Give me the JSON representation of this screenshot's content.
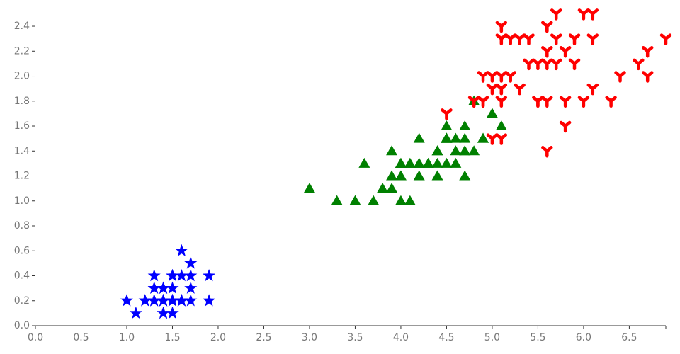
{
  "chart_data": {
    "type": "scatter",
    "xlim": [
      0,
      6.9
    ],
    "ylim": [
      0,
      2.5
    ],
    "xticks": [
      {
        "value": 0,
        "label": "0.0"
      },
      0.5,
      {
        "value": 1,
        "label": "1.0"
      },
      1.5,
      {
        "value": 2,
        "label": "2.0"
      },
      2.5,
      {
        "value": 3,
        "label": "3.0"
      },
      3.5,
      {
        "value": 4,
        "label": "4.0"
      },
      4.5,
      {
        "value": 5,
        "label": "5.0"
      },
      5.5,
      {
        "value": 6,
        "label": "6.0"
      },
      6.5
    ],
    "yticks": [
      {
        "value": 0,
        "label": "0.0"
      },
      0.2,
      0.4,
      0.6,
      0.8,
      {
        "value": 1,
        "label": "1.0"
      },
      1.2,
      1.4,
      1.6,
      1.8,
      {
        "value": 2,
        "label": "2.0"
      },
      2.2,
      2.4
    ],
    "grid": false,
    "series": [
      {
        "color": "#0000ff",
        "marker": "star",
        "x": [
          1.4,
          1.4,
          1.3,
          1.5,
          1.4,
          1.7,
          1.4,
          1.5,
          1.4,
          1.5,
          1.5,
          1.6,
          1.4,
          1.1,
          1.2,
          1.5,
          1.3,
          1.4,
          1.7,
          1.5,
          1.7,
          1.5,
          1.0,
          1.7,
          1.9,
          1.6,
          1.6,
          1.5,
          1.4,
          1.6,
          1.6,
          1.5,
          1.5,
          1.4,
          1.5,
          1.2,
          1.3,
          1.4,
          1.3,
          1.5,
          1.3,
          1.3,
          1.3,
          1.6,
          1.9,
          1.4,
          1.6,
          1.4,
          1.5,
          1.4
        ],
        "y": [
          0.2,
          0.2,
          0.2,
          0.2,
          0.2,
          0.4,
          0.3,
          0.2,
          0.2,
          0.1,
          0.2,
          0.2,
          0.1,
          0.1,
          0.2,
          0.4,
          0.4,
          0.3,
          0.3,
          0.3,
          0.2,
          0.4,
          0.2,
          0.5,
          0.2,
          0.2,
          0.4,
          0.2,
          0.2,
          0.2,
          0.2,
          0.4,
          0.1,
          0.2,
          0.2,
          0.2,
          0.2,
          0.1,
          0.2,
          0.2,
          0.3,
          0.3,
          0.2,
          0.6,
          0.4,
          0.3,
          0.2,
          0.2,
          0.2,
          0.2
        ]
      },
      {
        "color": "#008000",
        "marker": "triangle-up",
        "x": [
          4.7,
          4.5,
          4.9,
          4.0,
          4.6,
          4.5,
          4.7,
          3.3,
          4.6,
          3.9,
          3.5,
          4.2,
          4.0,
          4.7,
          3.6,
          4.4,
          4.5,
          4.1,
          4.5,
          3.9,
          4.8,
          4.0,
          4.9,
          4.7,
          4.3,
          4.4,
          4.8,
          5.0,
          4.5,
          3.5,
          3.8,
          3.7,
          3.9,
          5.1,
          4.5,
          4.5,
          4.7,
          4.4,
          4.1,
          4.0,
          4.4,
          4.6,
          4.0,
          3.3,
          4.2,
          4.2,
          4.2,
          4.3,
          3.0,
          4.1
        ],
        "y": [
          1.4,
          1.5,
          1.5,
          1.3,
          1.5,
          1.3,
          1.6,
          1.0,
          1.3,
          1.4,
          1.0,
          1.5,
          1.0,
          1.4,
          1.3,
          1.4,
          1.5,
          1.0,
          1.5,
          1.1,
          1.8,
          1.3,
          1.5,
          1.2,
          1.3,
          1.4,
          1.4,
          1.7,
          1.5,
          1.0,
          1.1,
          1.0,
          1.2,
          1.6,
          1.5,
          1.6,
          1.5,
          1.3,
          1.3,
          1.3,
          1.2,
          1.4,
          1.2,
          1.0,
          1.3,
          1.2,
          1.3,
          1.3,
          1.1,
          1.3
        ]
      },
      {
        "color": "#ff0000",
        "marker": "y-up",
        "x": [
          6.0,
          5.1,
          5.9,
          5.6,
          5.8,
          6.6,
          4.5,
          6.3,
          5.8,
          6.1,
          5.1,
          5.3,
          5.5,
          5.0,
          5.1,
          5.3,
          5.5,
          6.7,
          6.9,
          5.0,
          5.7,
          4.9,
          6.7,
          4.9,
          5.7,
          6.0,
          4.8,
          4.9,
          5.6,
          5.8,
          6.1,
          6.4,
          5.6,
          5.1,
          5.6,
          6.1,
          5.6,
          5.5,
          4.8,
          5.4,
          5.6,
          5.1,
          5.1,
          5.9,
          5.7,
          5.2,
          5.0,
          5.2,
          5.4,
          5.1
        ],
        "y": [
          2.5,
          1.9,
          2.1,
          1.8,
          2.2,
          2.1,
          1.7,
          1.8,
          1.8,
          2.5,
          2.0,
          1.9,
          2.1,
          2.0,
          2.4,
          2.3,
          1.8,
          2.2,
          2.3,
          1.5,
          2.3,
          2.0,
          2.0,
          1.8,
          2.1,
          1.8,
          1.8,
          1.8,
          2.1,
          1.6,
          1.9,
          2.0,
          2.2,
          1.5,
          1.4,
          2.3,
          2.4,
          1.8,
          1.8,
          2.1,
          2.4,
          2.3,
          1.9,
          2.3,
          2.5,
          2.3,
          1.9,
          2.0,
          2.3,
          1.8
        ]
      }
    ]
  }
}
